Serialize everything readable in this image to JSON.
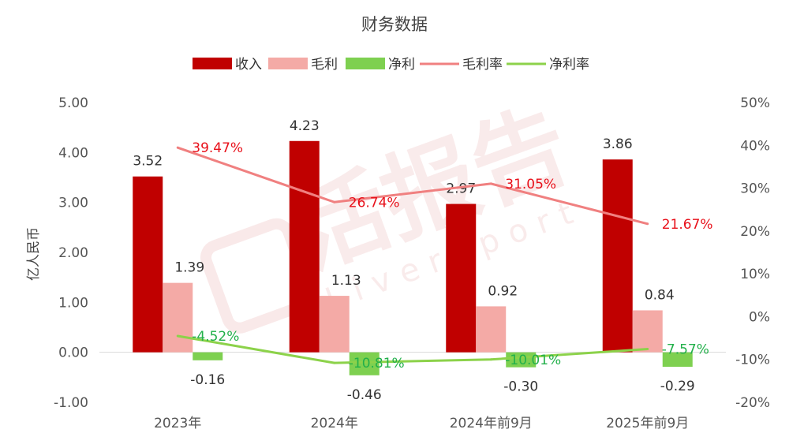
{
  "chart_data": {
    "type": "bar",
    "title": "财务数据",
    "ylabel": "亿人民币",
    "ylim": [
      -1,
      5
    ],
    "y_ticks": [
      "5.00",
      "4.00",
      "3.00",
      "2.00",
      "1.00",
      "0.00",
      "-1.00"
    ],
    "y2lim": [
      -20,
      50
    ],
    "y2_ticks": [
      "50%",
      "40%",
      "30%",
      "20%",
      "10%",
      "0%",
      "-10%",
      "-20%"
    ],
    "categories": [
      "2023年",
      "2024年",
      "2024年前9月",
      "2025年前9月"
    ],
    "series": [
      {
        "name": "收入",
        "kind": "bar",
        "color": "#c00000",
        "values": [
          3.52,
          4.23,
          2.97,
          3.86
        ],
        "labels": [
          "3.52",
          "4.23",
          "2.97",
          "3.86"
        ]
      },
      {
        "name": "毛利",
        "kind": "bar",
        "color": "#f4aaa6",
        "values": [
          1.39,
          1.13,
          0.92,
          0.84
        ],
        "labels": [
          "1.39",
          "1.13",
          "0.92",
          "0.84"
        ]
      },
      {
        "name": "净利",
        "kind": "bar",
        "color": "#7ed050",
        "values": [
          -0.16,
          -0.46,
          -0.3,
          -0.29
        ],
        "labels": [
          "-0.16",
          "-0.46",
          "-0.30",
          "-0.29"
        ]
      },
      {
        "name": "毛利率",
        "kind": "line",
        "axis": "right",
        "color": "#f08080",
        "label_color": "#e8101a",
        "values": [
          39.47,
          26.74,
          31.05,
          21.67
        ],
        "labels": [
          "39.47%",
          "26.74%",
          "31.05%",
          "21.67%"
        ]
      },
      {
        "name": "净利率",
        "kind": "line",
        "axis": "right",
        "color": "#8cd24a",
        "label_color": "#22b04a",
        "values": [
          -4.52,
          -10.81,
          -10.01,
          -7.57
        ],
        "labels": [
          "-4.52%",
          "-10.81%",
          "-10.01%",
          "-7.57%"
        ]
      }
    ],
    "legend": "top",
    "grid": false
  },
  "watermark": {
    "text": "活报告",
    "subtext": "Livereport"
  }
}
